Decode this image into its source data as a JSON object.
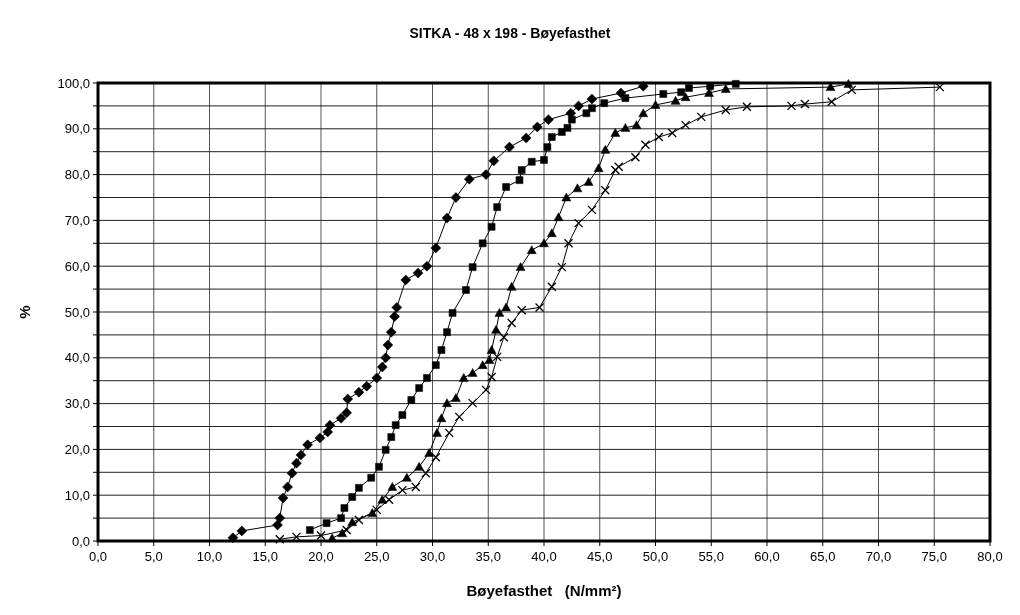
{
  "chart_data": {
    "type": "line",
    "title": "SITKA - 48 x 198 - Bøyefasthet",
    "xlabel": "Bøyefasthet   (N/mm²)",
    "ylabel": "%",
    "xlim": [
      0,
      80
    ],
    "ylim": [
      0,
      100
    ],
    "xticks": [
      {
        "value": 0,
        "label": "0,0"
      },
      {
        "value": 5,
        "label": "5,0"
      },
      {
        "value": 10,
        "label": "10,0"
      },
      {
        "value": 15,
        "label": "15,0"
      },
      {
        "value": 20,
        "label": "20,0"
      },
      {
        "value": 25,
        "label": "25,0"
      },
      {
        "value": 30,
        "label": "30,0"
      },
      {
        "value": 35,
        "label": "35,0"
      },
      {
        "value": 40,
        "label": "40,0"
      },
      {
        "value": 45,
        "label": "45,0"
      },
      {
        "value": 50,
        "label": "50,0"
      },
      {
        "value": 55,
        "label": "55,0"
      },
      {
        "value": 60,
        "label": "60,0"
      },
      {
        "value": 65,
        "label": "65,0"
      },
      {
        "value": 70,
        "label": "70,0"
      },
      {
        "value": 75,
        "label": "75,0"
      },
      {
        "value": 80,
        "label": "80,0"
      }
    ],
    "yticks": [
      {
        "value": 0,
        "label": "0,0"
      },
      {
        "value": 5,
        "label": null
      },
      {
        "value": 10,
        "label": "10,0"
      },
      {
        "value": 15,
        "label": null
      },
      {
        "value": 20,
        "label": "20,0"
      },
      {
        "value": 25,
        "label": null
      },
      {
        "value": 30,
        "label": "30,0"
      },
      {
        "value": 35,
        "label": null
      },
      {
        "value": 40,
        "label": "40,0"
      },
      {
        "value": 45,
        "label": null
      },
      {
        "value": 50,
        "label": "50,0"
      },
      {
        "value": 55,
        "label": null
      },
      {
        "value": 60,
        "label": "60,0"
      },
      {
        "value": 65,
        "label": null
      },
      {
        "value": 70,
        "label": "70,0"
      },
      {
        "value": 75,
        "label": null
      },
      {
        "value": 80,
        "label": "80,0"
      },
      {
        "value": 85,
        "label": null
      },
      {
        "value": 90,
        "label": "90,0"
      },
      {
        "value": 95,
        "label": null
      },
      {
        "value": 100,
        "label": "100,0"
      }
    ],
    "grid": true,
    "line_style": "solid",
    "series": [
      {
        "color": "#000000",
        "marker": "diamond",
        "x": [
          12.1,
          12.9,
          16.1,
          16.3,
          16.6,
          17.0,
          17.4,
          17.8,
          18.2,
          18.8,
          19.9,
          20.6,
          20.8,
          21.8,
          22.3,
          22.4,
          23.4,
          24.1,
          25.0,
          25.5,
          25.8,
          26.0,
          26.3,
          26.6,
          26.8,
          27.6,
          28.7,
          29.5,
          30.3,
          31.3,
          32.1,
          33.3,
          34.8,
          35.5,
          36.9,
          38.4,
          39.4,
          40.4,
          42.4,
          43.1,
          44.3,
          46.9,
          48.9
        ],
        "values": [
          0.7,
          2.2,
          3.5,
          5,
          9.4,
          11.8,
          14.8,
          17,
          18.8,
          21,
          22.5,
          23.8,
          25.3,
          26.8,
          28,
          31,
          32.5,
          33.8,
          35.6,
          38,
          40,
          42.8,
          45.6,
          49,
          51,
          57,
          58.5,
          60,
          64,
          70.5,
          75,
          79,
          80,
          83,
          86,
          88,
          90.4,
          92,
          93.4,
          95,
          96.5,
          97.8,
          99.3
        ]
      },
      {
        "color": "#000000",
        "marker": "square",
        "x": [
          19.0,
          20.5,
          21.8,
          22.1,
          22.8,
          23.4,
          24.5,
          25.2,
          25.8,
          26.3,
          26.7,
          27.3,
          28.1,
          28.8,
          29.5,
          30.3,
          30.8,
          31.3,
          31.8,
          33.0,
          33.6,
          34.5,
          35.3,
          35.8,
          36.6,
          37.8,
          38.0,
          38.9,
          40.0,
          40.3,
          40.7,
          41.6,
          42.1,
          42.5,
          43.8,
          44.3,
          45.4,
          47.3,
          50.7,
          52.3,
          53.0,
          54.9,
          57.2
        ],
        "values": [
          2.4,
          3.9,
          5,
          7.2,
          9.6,
          11.6,
          13.8,
          16.2,
          19.9,
          22.7,
          25.3,
          27.5,
          30.8,
          33.4,
          35.6,
          38.4,
          41.7,
          45.6,
          49.8,
          54.8,
          59.8,
          65,
          68.6,
          72.9,
          77.3,
          78.8,
          81,
          82.8,
          83.2,
          86,
          88.2,
          89.3,
          90.2,
          92,
          93.4,
          94.5,
          95.6,
          96.7,
          97.6,
          98,
          98.9,
          99.3,
          99.8
        ]
      },
      {
        "color": "#000000",
        "marker": "triangle",
        "x": [
          21.0,
          21.9,
          22.8,
          24.6,
          25.5,
          26.4,
          27.7,
          28.8,
          29.7,
          30.4,
          30.8,
          31.3,
          32.1,
          32.8,
          33.6,
          34.5,
          35.1,
          35.3,
          35.7,
          36.0,
          36.6,
          37.1,
          37.9,
          38.9,
          40.0,
          40.7,
          41.3,
          42.0,
          43.0,
          44.0,
          44.9,
          45.5,
          46.4,
          47.3,
          48.3,
          48.9,
          50.0,
          51.8,
          52.7,
          54.8,
          56.3,
          65.7,
          67.3
        ],
        "values": [
          0.6,
          1.7,
          4.1,
          6.1,
          9,
          11.8,
          13.8,
          16.2,
          19.2,
          23.6,
          26.8,
          30.1,
          31.2,
          35.6,
          36.7,
          38.4,
          39.5,
          41.7,
          46.1,
          49.8,
          51,
          55.5,
          59.8,
          63.5,
          65,
          67.2,
          70.7,
          75,
          77,
          78.4,
          81.4,
          85.4,
          89.1,
          90.2,
          90.8,
          93.4,
          95.2,
          96.1,
          96.9,
          97.8,
          98.7,
          99.1,
          99.8
        ]
      },
      {
        "color": "#000000",
        "marker": "cross",
        "x": [
          16.3,
          17.8,
          20.0,
          22.3,
          23.4,
          25.0,
          26.1,
          27.3,
          28.5,
          29.4,
          30.3,
          31.5,
          32.4,
          33.6,
          34.8,
          35.3,
          35.8,
          36.4,
          37.1,
          38.0,
          39.6,
          40.7,
          41.6,
          42.2,
          43.1,
          44.3,
          45.5,
          46.4,
          46.7,
          48.2,
          49.1,
          50.3,
          51.5,
          52.7,
          54.1,
          56.3,
          58.2,
          62.2,
          63.4,
          65.8,
          67.6,
          75.5
        ],
        "values": [
          0.4,
          0.9,
          1.2,
          2.4,
          4.6,
          6.8,
          9,
          11.1,
          11.8,
          14.8,
          18.3,
          23.6,
          27.1,
          30.1,
          33,
          35.8,
          40.2,
          44.5,
          47.6,
          50.4,
          51,
          55.5,
          59.8,
          65,
          69.4,
          72.3,
          76.6,
          81,
          81.7,
          83.8,
          86.5,
          88.2,
          89.1,
          90.8,
          92.6,
          94.1,
          94.8,
          95,
          95.4,
          95.9,
          98.5,
          99.1
        ]
      }
    ]
  }
}
